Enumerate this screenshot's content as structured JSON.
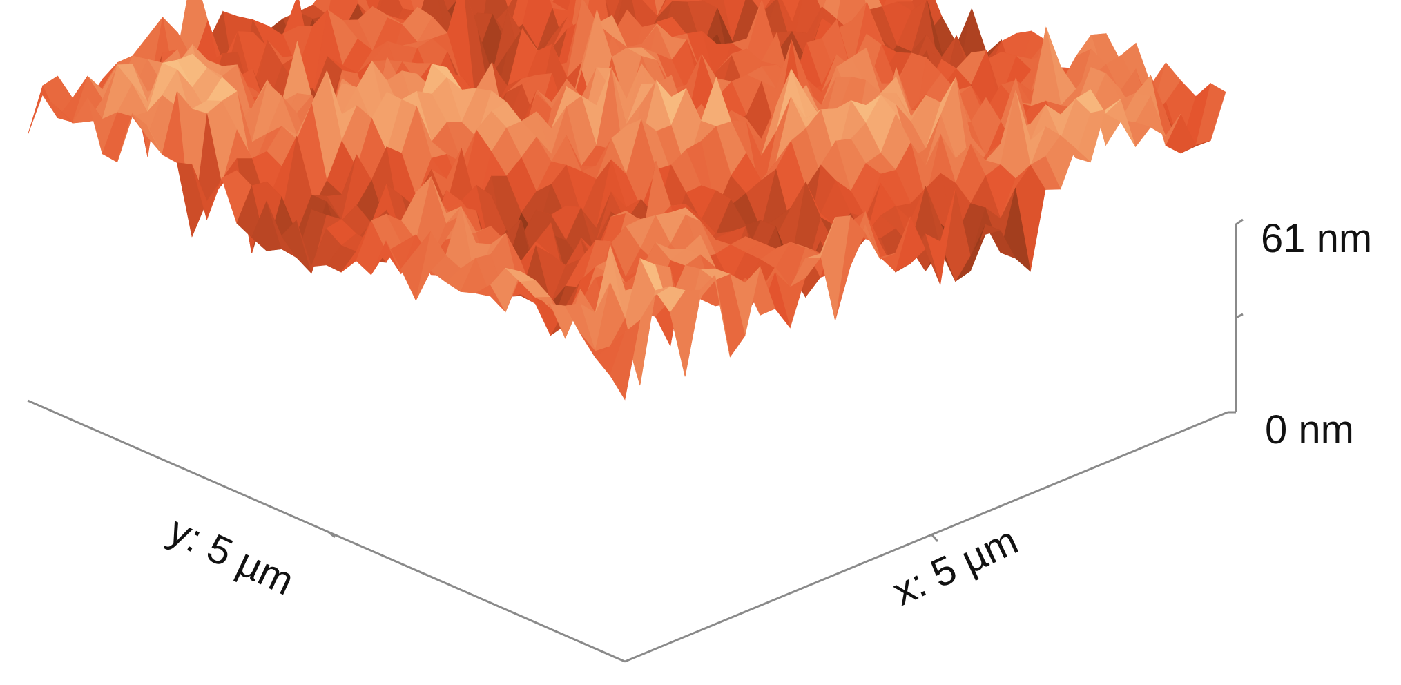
{
  "figure": {
    "type": "afm-3d-surface",
    "axes": {
      "x_label": "x: 5 µm",
      "y_label": "y: 5 µm",
      "z_max_label": "61 nm",
      "z_min_label": "0 nm"
    },
    "scan_size_um": 5,
    "height_range_nm": [
      0,
      61
    ],
    "colormap": {
      "low": "#6b2a10",
      "mid": "#e4552e",
      "high": "#ffe09e"
    }
  }
}
